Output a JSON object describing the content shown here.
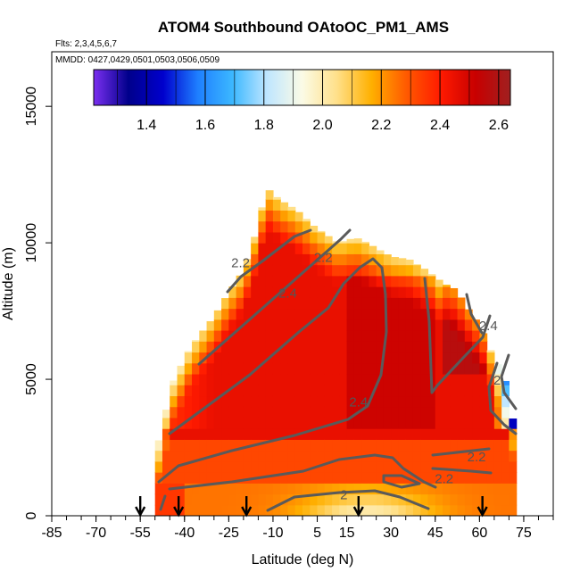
{
  "chart_data": {
    "type": "heatmap",
    "title": "ATOM4 Southbound OAtoOC_PM1_AMS",
    "flights_label": "Flts: 2,3,4,5,6,7",
    "dates_label": "MMDD: 0427,0429,0501,0503,0506,0509",
    "xlabel": "Latitude (deg N)",
    "ylabel": "Altitude (m)",
    "xlim": [
      -85,
      85
    ],
    "ylim": [
      0,
      17000
    ],
    "x_tick_values": [
      -85,
      -70,
      -55,
      -40,
      -25,
      -10,
      5,
      15,
      30,
      45,
      60,
      75
    ],
    "x_tick_labels": [
      "-85",
      "-70",
      "-55",
      "-40",
      "-25",
      "-10",
      "5",
      "15",
      "30",
      "45",
      "60",
      "75"
    ],
    "y_tick_values": [
      0,
      5000,
      10000,
      15000
    ],
    "y_tick_labels": [
      "0",
      "5000",
      "10000",
      "15000"
    ],
    "colorbar": {
      "range": [
        1.22,
        2.64
      ],
      "tick_values": [
        1.4,
        1.6,
        1.8,
        2.0,
        2.2,
        2.4,
        2.6
      ],
      "tick_labels": [
        "1.4",
        "1.6",
        "1.8",
        "2.0",
        "2.2",
        "2.4",
        "2.6"
      ],
      "colors": [
        "#7b2ff0",
        "#00008b",
        "#0000cd",
        "#1e7fff",
        "#3cb8ff",
        "#bfe6ff",
        "#fbfbe6",
        "#ffe08a",
        "#ffb000",
        "#ff5a00",
        "#ff1a00",
        "#c80000",
        "#a02020"
      ]
    },
    "profile_markers_latitude": [
      -55,
      -42,
      -19,
      19,
      61
    ],
    "contour_labels": [
      {
        "text": "2.2",
        "lat": -21,
        "alt": 9100
      },
      {
        "text": "2.2",
        "lat": 7,
        "alt": 9300
      },
      {
        "text": "2.4",
        "lat": -5,
        "alt": 8000
      },
      {
        "text": "2.4",
        "lat": 19,
        "alt": 4000
      },
      {
        "text": "2.2",
        "lat": 48,
        "alt": 1200
      },
      {
        "text": "2",
        "lat": 14,
        "alt": 600
      },
      {
        "text": "2.4",
        "lat": 63,
        "alt": 6800
      },
      {
        "text": "2.2",
        "lat": 59,
        "alt": 2000
      },
      {
        "text": "2",
        "lat": 66,
        "alt": 4800
      }
    ]
  }
}
